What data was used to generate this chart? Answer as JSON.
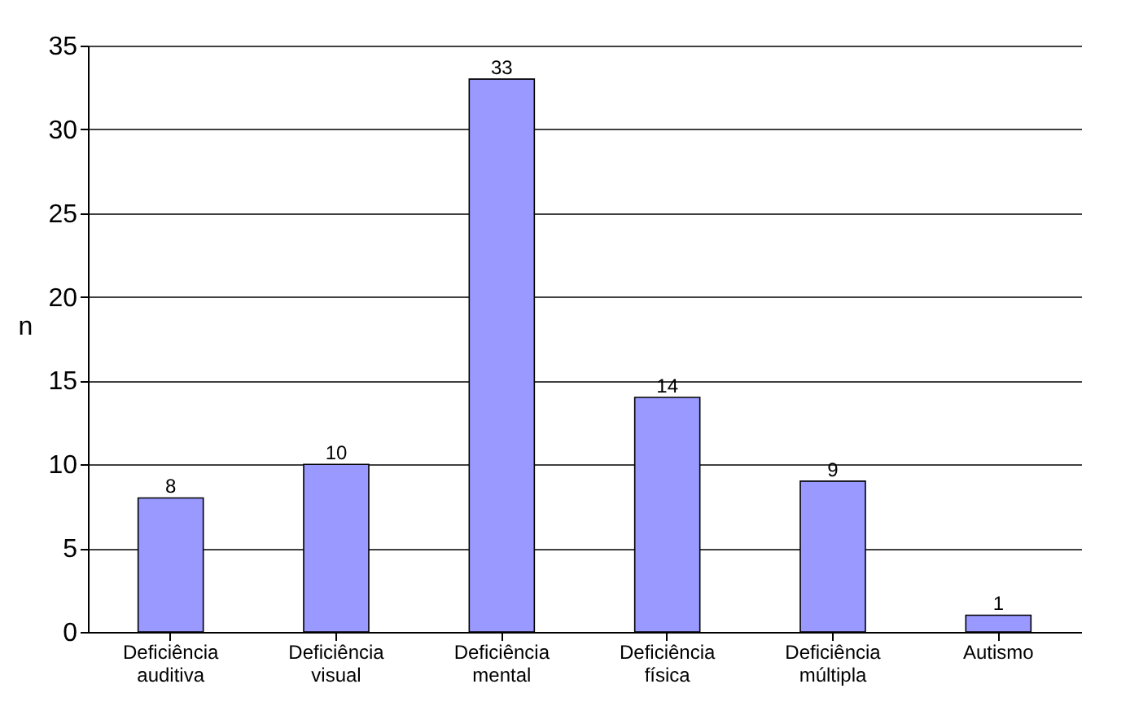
{
  "chart_data": {
    "type": "bar",
    "ylabel": "n",
    "categories": [
      "Deficiência auditiva",
      "Deficiência visual",
      "Deficiência mental",
      "Deficiência física",
      "Deficiência múltipla",
      "Autismo"
    ],
    "values": [
      8,
      10,
      33,
      14,
      9,
      1
    ],
    "color": "#9999ff",
    "ylim": [
      0,
      35
    ],
    "yticks": [
      0,
      5,
      10,
      15,
      20,
      25,
      30,
      35
    ],
    "grid": "y",
    "data_labels": true
  }
}
